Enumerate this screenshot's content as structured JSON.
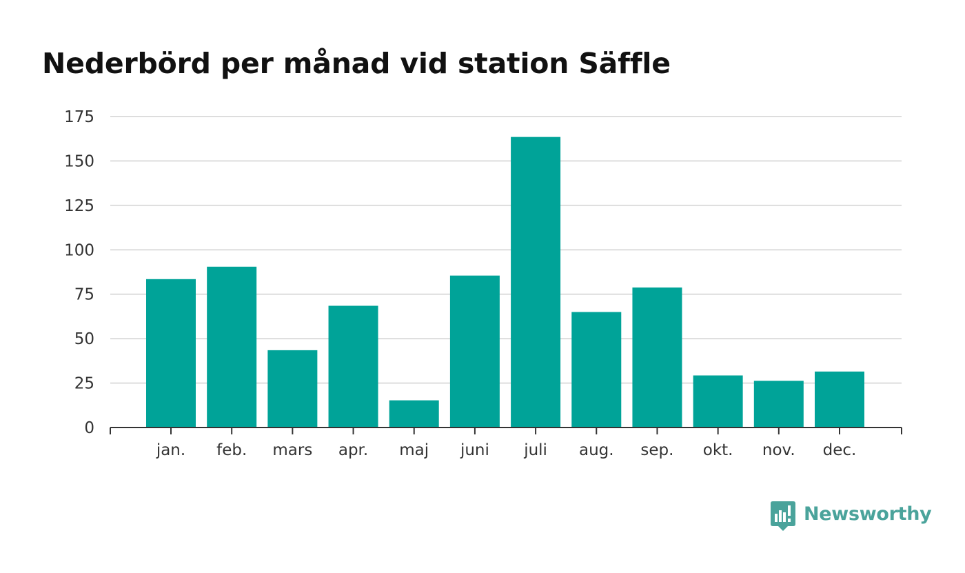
{
  "title": "Nederbörd per månad vid station Säffle",
  "brand": {
    "name": "Newsworthy",
    "color": "#4aa39b"
  },
  "colors": {
    "bar": "#00a398",
    "grid": "#dddddd",
    "axis": "#333333",
    "title": "#111111"
  },
  "chart_data": {
    "type": "bar",
    "title": "Nederbörd per månad vid station Säffle",
    "xlabel": "",
    "ylabel": "",
    "categories": [
      "jan.",
      "feb.",
      "mars",
      "apr.",
      "maj",
      "juni",
      "juli",
      "aug.",
      "sep.",
      "okt.",
      "nov.",
      "dec."
    ],
    "values": [
      83.5,
      90.5,
      43.5,
      68.5,
      15.3,
      85.5,
      163.5,
      65,
      78.8,
      29.3,
      26.3,
      31.5
    ],
    "ylim": [
      0,
      175
    ],
    "yticks": [
      0,
      25,
      50,
      75,
      100,
      125,
      150,
      175
    ],
    "grid": true,
    "legend": "none"
  }
}
